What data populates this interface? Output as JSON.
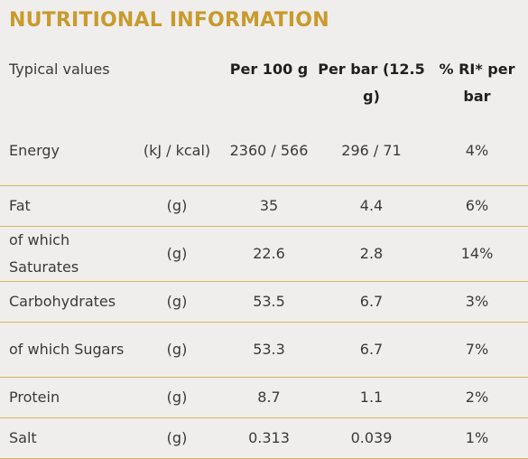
{
  "title": "NUTRITIONAL INFORMATION",
  "header": {
    "typical": "Typical values",
    "unit": "",
    "per100": "Per 100 g",
    "perbar": "Per bar (12.5 g)",
    "ri": "% RI* per bar"
  },
  "rows": [
    {
      "label": "Energy",
      "unit": "(kJ / kcal)",
      "per100": "2360 / 566",
      "perbar": "296 / 71",
      "ri": "4%"
    },
    {
      "label": "Fat",
      "unit": "(g)",
      "per100": "35",
      "perbar": "4.4",
      "ri": "6%"
    },
    {
      "label": "of which Saturates",
      "unit": "(g)",
      "per100": "22.6",
      "perbar": "2.8",
      "ri": "14%"
    },
    {
      "label": "Carbohydrates",
      "unit": "(g)",
      "per100": "53.5",
      "perbar": "6.7",
      "ri": "3%"
    },
    {
      "label": "of which Sugars",
      "unit": "(g)",
      "per100": "53.3",
      "perbar": "6.7",
      "ri": "7%"
    },
    {
      "label": "Protein",
      "unit": "(g)",
      "per100": "8.7",
      "perbar": "1.1",
      "ri": "2%"
    },
    {
      "label": "Salt",
      "unit": "(g)",
      "per100": "0.313",
      "perbar": "0.039",
      "ri": "1%"
    }
  ],
  "colors": {
    "title": "#c99a2c",
    "divider": "#d4b45c",
    "background": "#efeeed"
  }
}
